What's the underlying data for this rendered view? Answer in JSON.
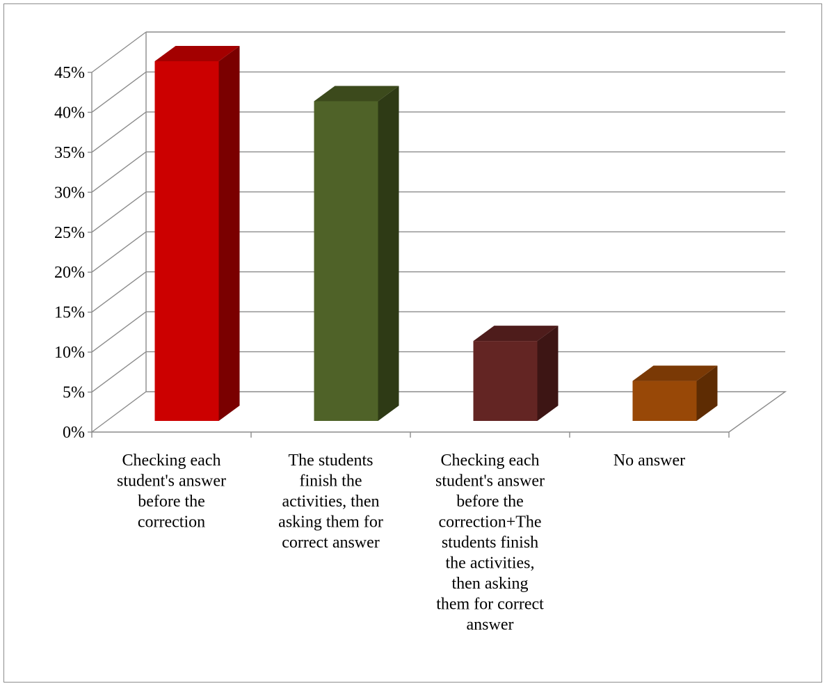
{
  "chart_data": {
    "type": "bar",
    "style": "3d-column",
    "title": "",
    "xlabel": "",
    "ylabel": "",
    "ylim": [
      0,
      45
    ],
    "y_ticks": [
      "0%",
      "5%",
      "10%",
      "15%",
      "20%",
      "25%",
      "30%",
      "35%",
      "40%",
      "45%"
    ],
    "y_tick_values": [
      0,
      5,
      10,
      15,
      20,
      25,
      30,
      35,
      40,
      45
    ],
    "grid": true,
    "legend": "none",
    "categories": [
      {
        "label_lines": [
          "Checking each",
          "student's answer",
          "before the",
          "correction"
        ]
      },
      {
        "label_lines": [
          "The students",
          "finish the",
          "activities, then",
          "asking them for",
          "correct answer"
        ]
      },
      {
        "label_lines": [
          "Checking each",
          "student's answer",
          "before the",
          "correction+The",
          "students finish",
          "the activities,",
          "then asking",
          "them for correct",
          "answer"
        ]
      },
      {
        "label_lines": [
          "No answer"
        ]
      }
    ],
    "values": [
      45,
      40,
      10,
      5
    ],
    "colors": [
      {
        "front": "#cc0000",
        "side": "#7a0000",
        "top": "#a30000"
      },
      {
        "front": "#4f6228",
        "side": "#2e3a15",
        "top": "#3c4a1c"
      },
      {
        "front": "#632523",
        "side": "#3d1514",
        "top": "#4e1c1b"
      },
      {
        "front": "#984807",
        "side": "#5e2c03",
        "top": "#7a3905"
      }
    ],
    "grid_color": "#8c8c8c"
  }
}
